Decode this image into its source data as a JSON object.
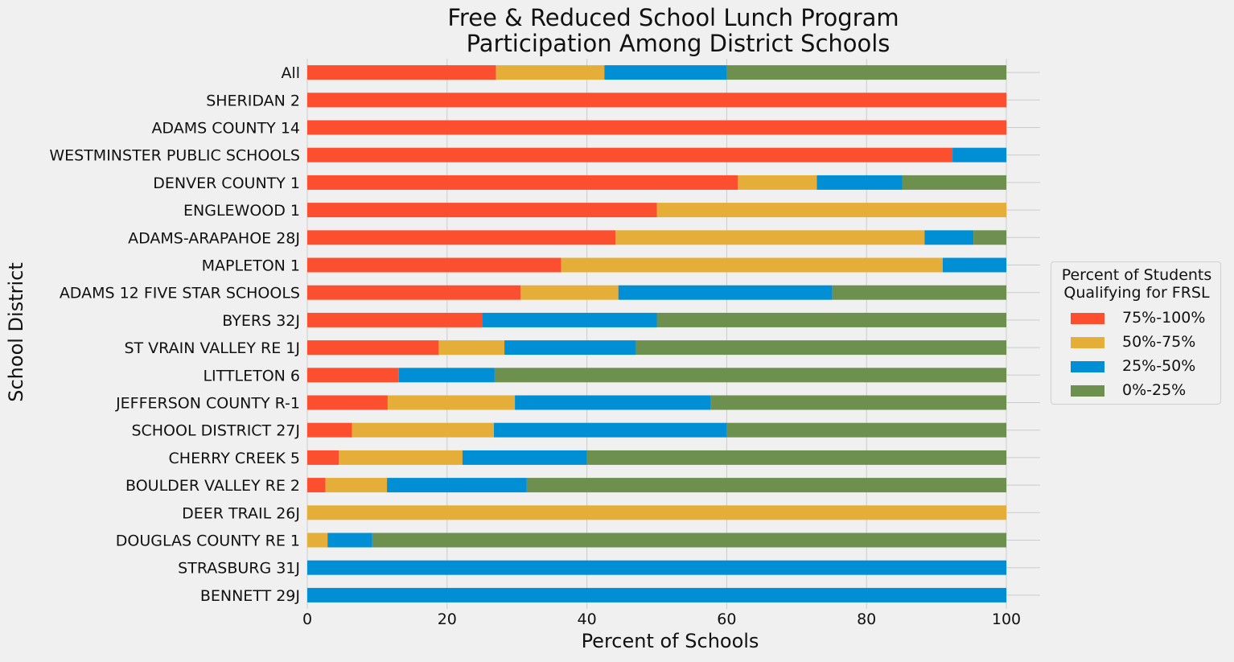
{
  "chart_data": {
    "type": "bar",
    "orientation": "horizontal",
    "stacked": true,
    "title_lines": [
      "Free & Reduced School Lunch Program",
      "Participation Among District Schools"
    ],
    "xlabel": "Percent of Schools",
    "ylabel": "School District",
    "xlim": [
      0,
      105
    ],
    "xticks": [
      "0",
      "20",
      "40",
      "60",
      "80",
      "100"
    ],
    "grid": true,
    "legend": {
      "title_lines": [
        "Percent of Students",
        "Qualifying for FRSL"
      ],
      "placement": "center-right"
    },
    "categories": [
      "All",
      "SHERIDAN 2",
      "ADAMS COUNTY 14",
      "WESTMINSTER PUBLIC SCHOOLS",
      "DENVER COUNTY 1",
      "ENGLEWOOD 1",
      "ADAMS-ARAPAHOE 28J",
      "MAPLETON 1",
      "ADAMS 12 FIVE STAR SCHOOLS",
      "BYERS 32J",
      "ST VRAIN VALLEY RE 1J",
      "LITTLETON 6",
      "JEFFERSON COUNTY R-1",
      "SCHOOL DISTRICT 27J",
      "CHERRY CREEK 5",
      "BOULDER VALLEY RE 2",
      "DEER TRAIL 26J",
      "DOUGLAS COUNTY RE 1",
      "STRASBURG 31J",
      "BENNETT 29J"
    ],
    "series": [
      {
        "name": "75%-100%",
        "color": "#fc4f30",
        "values": [
          27,
          100,
          100,
          92.3,
          61.6,
          50,
          44.1,
          36.3,
          30.5,
          25,
          18.8,
          13.1,
          11.5,
          6.4,
          4.5,
          2.6,
          0,
          0,
          0,
          0
        ]
      },
      {
        "name": "50%-75%",
        "color": "#e5ae38",
        "values": [
          15.5,
          0,
          0,
          0,
          11.3,
          50,
          44.2,
          54.6,
          14,
          0,
          9.4,
          0,
          18.2,
          20.3,
          17.7,
          8.8,
          100,
          2.9,
          0,
          0
        ]
      },
      {
        "name": "25%-50%",
        "color": "#008fd5",
        "values": [
          17.5,
          0,
          0,
          7.7,
          12.2,
          0,
          7,
          9.1,
          30.6,
          25,
          18.8,
          13.7,
          28,
          33.3,
          17.8,
          20,
          0,
          6.4,
          100,
          100
        ]
      },
      {
        "name": "0%-25%",
        "color": "#6d904f",
        "values": [
          40,
          0,
          0,
          0,
          14.9,
          0,
          4.7,
          0,
          24.9,
          50,
          53,
          73.2,
          42.3,
          40,
          60,
          68.6,
          0,
          90.7,
          0,
          0
        ]
      }
    ]
  }
}
